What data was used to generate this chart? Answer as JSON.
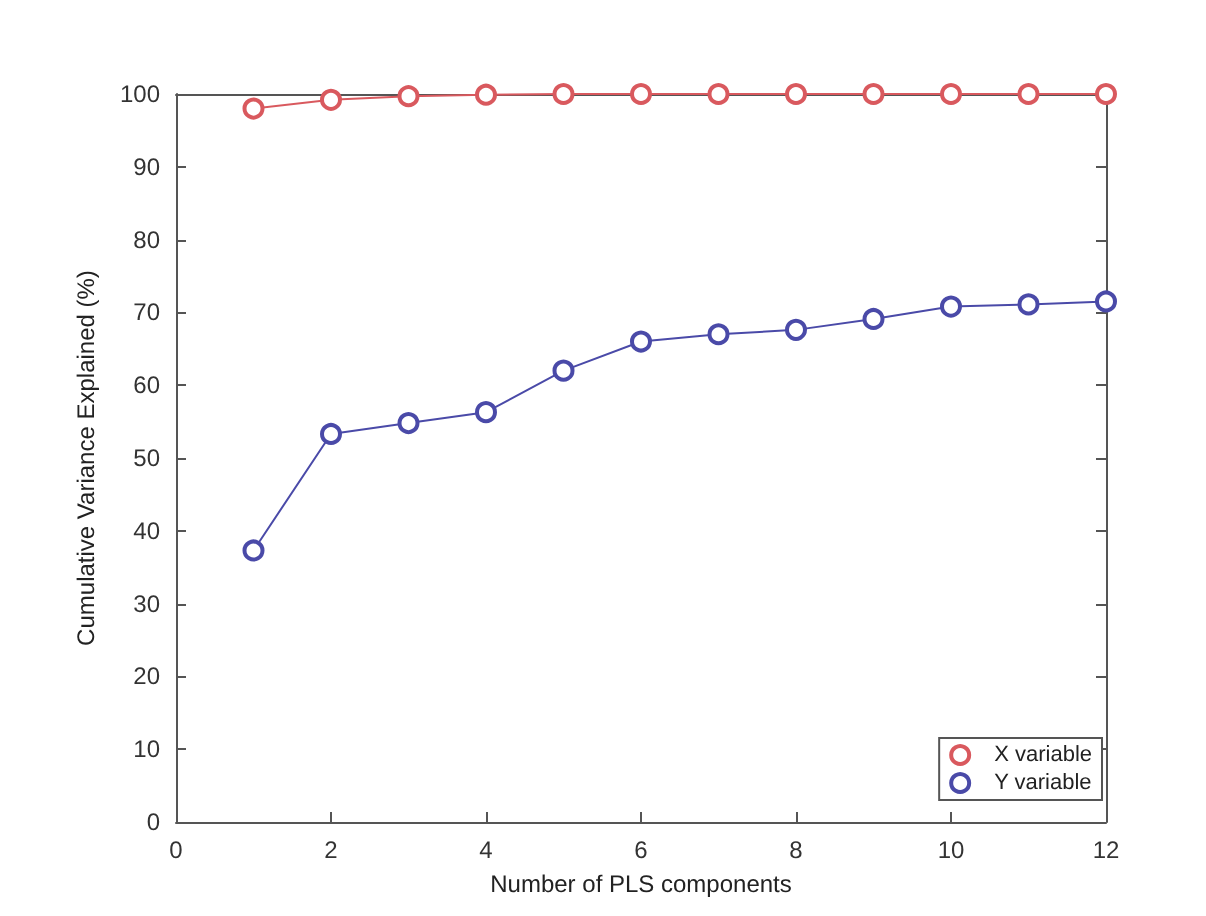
{
  "chart_data": {
    "type": "line",
    "xlabel": "Number of PLS components",
    "ylabel": "Cumulative Variance Explained (%)",
    "x": [
      1,
      2,
      3,
      4,
      5,
      6,
      7,
      8,
      9,
      10,
      11,
      12
    ],
    "series": [
      {
        "name": "X variable",
        "color": "#d9595e",
        "values": [
          98,
          99.2,
          99.7,
          99.9,
          100,
          100,
          100,
          100,
          100,
          100,
          100,
          100
        ]
      },
      {
        "name": "Y variable",
        "color": "#4a4aa8",
        "values": [
          37.3,
          53.3,
          54.8,
          56.3,
          62,
          66,
          67,
          67.6,
          69.1,
          70.8,
          71.1,
          71.5
        ]
      }
    ],
    "xlim": [
      0,
      12
    ],
    "xticks": [
      0,
      2,
      4,
      6,
      8,
      10,
      12
    ],
    "ylim": [
      0,
      100
    ],
    "yticks": [
      0,
      10,
      20,
      30,
      40,
      50,
      60,
      70,
      80,
      90,
      100
    ],
    "grid": false,
    "legend": "bottom right",
    "marker": "circle",
    "line_style": "solid"
  }
}
